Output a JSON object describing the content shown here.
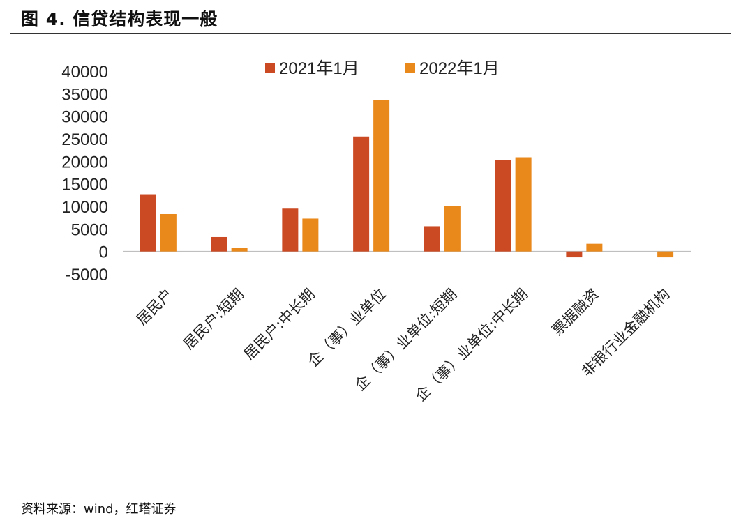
{
  "figure": {
    "title": "图 4. 信贷结构表现一般",
    "source": "资料来源：wind，红塔证券"
  },
  "colors": {
    "series_2021": "#cc4a23",
    "series_2022": "#e9891c",
    "axis": "#bfbfbf"
  },
  "chart_data": {
    "type": "bar",
    "categories": [
      "居民户",
      "居民户:短期",
      "居民户:中长期",
      "企（事）业单位",
      "企（事）业单位:短期",
      "企（事）业单位:中长期",
      "票据融资",
      "非银行业金融机构"
    ],
    "series": [
      {
        "name": "2021年1月",
        "values": [
          12700,
          3200,
          9500,
          25500,
          5600,
          20300,
          -1300,
          0
        ]
      },
      {
        "name": "2022年1月",
        "values": [
          8300,
          800,
          7300,
          33600,
          10000,
          20900,
          1700,
          -1300
        ]
      }
    ],
    "ylim": [
      -5000,
      40000
    ],
    "yticks": [
      "40000",
      "35000",
      "30000",
      "25000",
      "20000",
      "15000",
      "10000",
      "5000",
      "0",
      "-5000"
    ],
    "title": "",
    "xlabel": "",
    "ylabel": "",
    "legend_position": "top",
    "grid": false
  }
}
